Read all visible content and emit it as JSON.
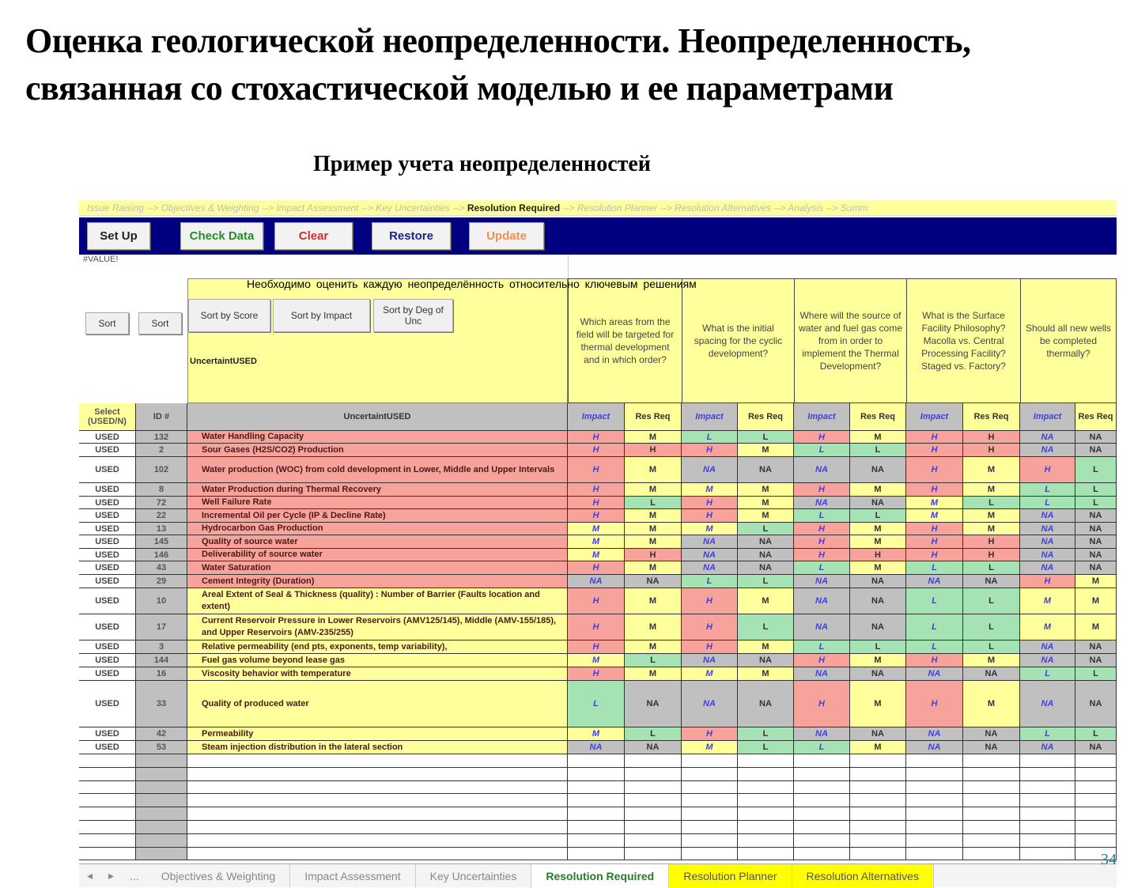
{
  "slide": {
    "title_line1": "Оценка геологической неопределенности. Неопределенность,",
    "title_line2": "связанная со стохастической моделью и ее параметрами",
    "subtitle": "Пример учета неопределенностей",
    "page_number": "34",
    "overlay_note": "Необходимо оценить каждую неопределённость относительно ключевым решениям"
  },
  "breadcrumb": {
    "before": "Issue Raising --> Objectives & Weighting --> Impact Assessment --> Key Uncertainties --> ",
    "current": "Resolution Required",
    "after": " --> Resolution Planner --> Resolution Alternatives --> Analysis --> Summ"
  },
  "toolbar": {
    "setup": "Set Up",
    "check": "Check Data",
    "clear": "Clear",
    "restore": "Restore",
    "update": "Update"
  },
  "error_cell": "#VALUE!",
  "sort": {
    "sort1": "Sort",
    "sort2": "Sort",
    "by_score": "Sort by Score",
    "by_impact": "Sort by Impact",
    "by_deg": "Sort by Deg of Unc",
    "label": "UncertaintUSED"
  },
  "questions": [
    "Which areas from the field will be targeted for thermal development and in which order?",
    "What is the initial spacing for the cyclic development?",
    "Where will the source of water and fuel gas come from in order to implement the Thermal Development?",
    "What is the Surface Facility Philosophy? Macolla vs. Central Processing Facility? Staged vs. Factory?",
    "Should all new wells be completed thermally?"
  ],
  "headers": {
    "select": "Select (USED/N)",
    "id": "ID #",
    "name": "UncertaintUSED",
    "impact": "Impact",
    "resreq": "Res Req"
  },
  "colors": {
    "H": "#f7a39b",
    "M": "#ffff9c",
    "L": "#a6e3b4",
    "NA": "#c0c0c0",
    "name_red": "#f7a39b",
    "name_yellow": "#ffff9c",
    "toolbar": "#000080"
  },
  "rows": [
    {
      "sel": "USED",
      "id": "132",
      "name": "Water Handling Capacity",
      "tone": "red",
      "v": [
        "H",
        "M",
        "L",
        "L",
        "H",
        "M",
        "H",
        "H",
        "NA",
        "NA"
      ]
    },
    {
      "sel": "USED",
      "id": "2",
      "name": "Sour Gases (H2S/CO2) Production",
      "tone": "red",
      "v": [
        "H",
        "H",
        "H",
        "M",
        "L",
        "L",
        "H",
        "H",
        "NA",
        "NA"
      ]
    },
    {
      "sel": "USED",
      "id": "102",
      "name": "Water production (WOC) from cold development in Lower, Middle and Upper Intervals",
      "tone": "red",
      "v": [
        "H",
        "M",
        "NA",
        "NA",
        "NA",
        "NA",
        "H",
        "M",
        "H",
        "L"
      ]
    },
    {
      "sel": "USED",
      "id": "8",
      "name": "Water Production during Thermal Recovery",
      "tone": "red",
      "v": [
        "H",
        "M",
        "M",
        "M",
        "H",
        "M",
        "H",
        "M",
        "L",
        "L"
      ]
    },
    {
      "sel": "USED",
      "id": "72",
      "name": "Well Failure Rate",
      "tone": "red",
      "v": [
        "H",
        "L",
        "H",
        "M",
        "NA",
        "NA",
        "M",
        "L",
        "L",
        "L"
      ]
    },
    {
      "sel": "USED",
      "id": "22",
      "name": "Incremental Oil per Cycle (IP & Decline Rate)",
      "tone": "red",
      "v": [
        "H",
        "M",
        "H",
        "M",
        "L",
        "L",
        "M",
        "M",
        "NA",
        "NA"
      ]
    },
    {
      "sel": "USED",
      "id": "13",
      "name": "Hydrocarbon Gas Production",
      "tone": "red",
      "v": [
        "M",
        "M",
        "M",
        "L",
        "H",
        "M",
        "H",
        "M",
        "NA",
        "NA"
      ]
    },
    {
      "sel": "USED",
      "id": "145",
      "name": "Quality of source water",
      "tone": "red",
      "v": [
        "M",
        "M",
        "NA",
        "NA",
        "H",
        "M",
        "H",
        "H",
        "NA",
        "NA"
      ]
    },
    {
      "sel": "USED",
      "id": "146",
      "name": "Deliverability of source water",
      "tone": "red",
      "v": [
        "M",
        "H",
        "NA",
        "NA",
        "H",
        "H",
        "H",
        "H",
        "NA",
        "NA"
      ]
    },
    {
      "sel": "USED",
      "id": "43",
      "name": "Water Saturation",
      "tone": "red",
      "v": [
        "H",
        "M",
        "NA",
        "NA",
        "L",
        "M",
        "L",
        "L",
        "NA",
        "NA"
      ]
    },
    {
      "sel": "USED",
      "id": "29",
      "name": "Cement Integrity (Duration)",
      "tone": "red",
      "v": [
        "NA",
        "NA",
        "L",
        "L",
        "NA",
        "NA",
        "NA",
        "NA",
        "H",
        "M"
      ]
    },
    {
      "sel": "USED",
      "id": "10",
      "name": "Areal Extent of Seal & Thickness (quality) : Number of Barrier (Faults location and extent)",
      "tone": "yellow",
      "v": [
        "H",
        "M",
        "H",
        "M",
        "NA",
        "NA",
        "L",
        "L",
        "M",
        "M"
      ]
    },
    {
      "sel": "USED",
      "id": "17",
      "name": "Current Reservoir Pressure in Lower Reservoirs (AMV125/145), Middle (AMV-155/185), and Upper Reservoirs (AMV-235/255)",
      "tone": "yellow",
      "v": [
        "H",
        "M",
        "H",
        "L",
        "NA",
        "NA",
        "L",
        "L",
        "M",
        "M"
      ]
    },
    {
      "sel": "USED",
      "id": "3",
      "name": "Relative permeability (end pts, exponents, temp variability),",
      "tone": "yellow",
      "v": [
        "H",
        "M",
        "H",
        "M",
        "L",
        "L",
        "L",
        "L",
        "NA",
        "NA"
      ]
    },
    {
      "sel": "USED",
      "id": "144",
      "name": "Fuel gas volume beyond lease gas",
      "tone": "yellow",
      "v": [
        "M",
        "L",
        "NA",
        "NA",
        "H",
        "M",
        "H",
        "M",
        "NA",
        "NA"
      ]
    },
    {
      "sel": "USED",
      "id": "16",
      "name": "Viscosity behavior with temperature",
      "tone": "yellow",
      "v": [
        "H",
        "M",
        "M",
        "M",
        "NA",
        "NA",
        "NA",
        "NA",
        "L",
        "L"
      ]
    },
    {
      "sel": "USED",
      "id": "33",
      "name": "Quality of produced water",
      "tone": "yellow",
      "v": [
        "L",
        "NA",
        "NA",
        "NA",
        "H",
        "M",
        "H",
        "M",
        "NA",
        "NA"
      ]
    },
    {
      "sel": "USED",
      "id": "42",
      "name": "Permeability",
      "tone": "yellow",
      "v": [
        "M",
        "L",
        "H",
        "L",
        "NA",
        "NA",
        "NA",
        "NA",
        "L",
        "L"
      ]
    },
    {
      "sel": "USED",
      "id": "53",
      "name": "Steam injection distribution in the lateral section",
      "tone": "yellow",
      "v": [
        "NA",
        "NA",
        "M",
        "L",
        "L",
        "M",
        "NA",
        "NA",
        "NA",
        "NA"
      ]
    }
  ],
  "sheet_tabs": {
    "prev": "◂",
    "next": "▸",
    "more": "...",
    "items": [
      "Objectives & Weighting",
      "Impact Assessment",
      "Key Uncertainties",
      "Resolution Required",
      "Resolution Planner",
      "Resolution Alternatives"
    ],
    "active": "Resolution Required"
  }
}
